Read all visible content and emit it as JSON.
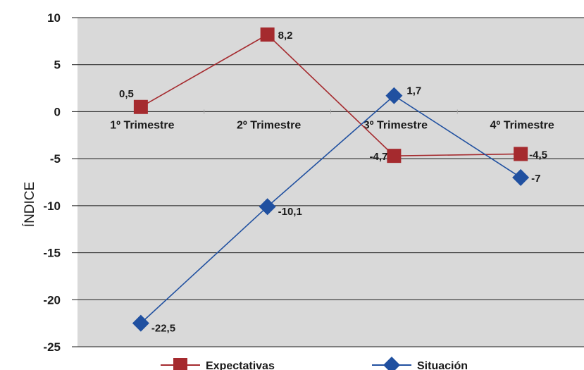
{
  "chart_data": {
    "type": "line",
    "title": "",
    "xlabel": "",
    "ylabel": "ÍNDICE",
    "ylim": [
      -25,
      10
    ],
    "yticks": [
      10,
      5,
      0,
      -5,
      -10,
      -15,
      -20,
      -25
    ],
    "categories": [
      "1º Trimestre",
      "2º Trimestre",
      "3º Trimestre",
      "4º Trimestre"
    ],
    "grid": true,
    "legend": "bottom",
    "series": [
      {
        "name": "Expectativas",
        "values": [
          0.5,
          8.2,
          -4.7,
          -4.5
        ],
        "labels": [
          "0,5",
          "8,2",
          "-4,7",
          "-4,5"
        ],
        "color": "#a52a2e",
        "marker": "square"
      },
      {
        "name": "Situación",
        "values": [
          -22.5,
          -10.1,
          1.7,
          -7
        ],
        "labels": [
          "-22,5",
          "-10,1",
          "1,7",
          "-7"
        ],
        "color": "#2050a0",
        "marker": "diamond"
      }
    ]
  }
}
